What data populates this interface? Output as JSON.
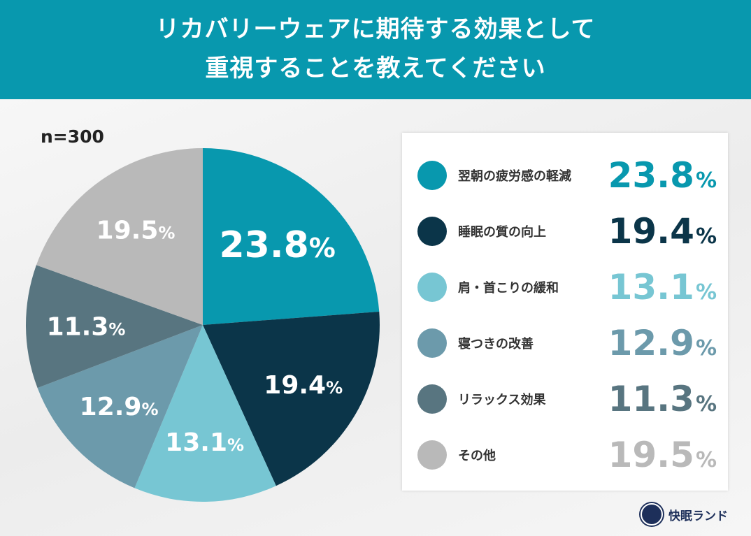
{
  "header": {
    "title_line1": "リカバリーウェアに期待する効果として",
    "title_line2": "重視することを教えてください"
  },
  "sample": "n=300",
  "chart_data": {
    "type": "pie",
    "start": "top",
    "direction": "clockwise",
    "unit": "%",
    "categories": [
      "翌朝の疲労感の軽減",
      "睡眠の質の向上",
      "肩・首こりの緩和",
      "寝つきの改善",
      "リラックス効果",
      "その他"
    ],
    "values": [
      23.8,
      19.4,
      13.1,
      12.9,
      11.3,
      19.5
    ],
    "labels": [
      "23.8",
      "19.4",
      "13.1",
      "12.9",
      "11.3",
      "19.5"
    ],
    "colors": [
      "#0898ae",
      "#0b3549",
      "#77c6d3",
      "#6c9aab",
      "#587580",
      "#b9b9b9"
    ],
    "legend": "right"
  },
  "brand": {
    "name": "快眠ランド"
  }
}
